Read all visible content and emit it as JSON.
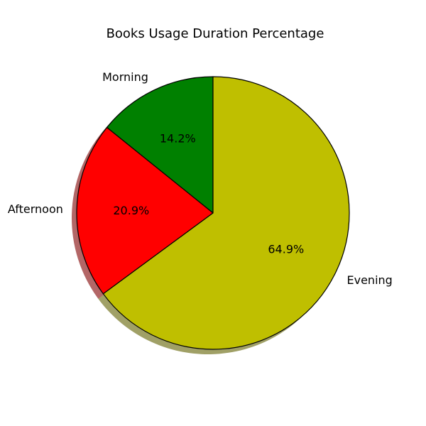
{
  "chart_data": {
    "type": "pie",
    "title": "Books Usage Duration Percentage",
    "categories": [
      "Morning",
      "Afternoon",
      "Evening"
    ],
    "values": [
      14.2,
      20.9,
      64.9
    ],
    "value_labels": [
      "14.2%",
      "20.9%",
      "64.9%"
    ],
    "colors": [
      "#008000",
      "#ff0000",
      "#bfbf00"
    ],
    "edge_color": "#000000",
    "shadow": true,
    "start_angle_deg": 90,
    "direction": "counterclockwise",
    "legend": false
  }
}
